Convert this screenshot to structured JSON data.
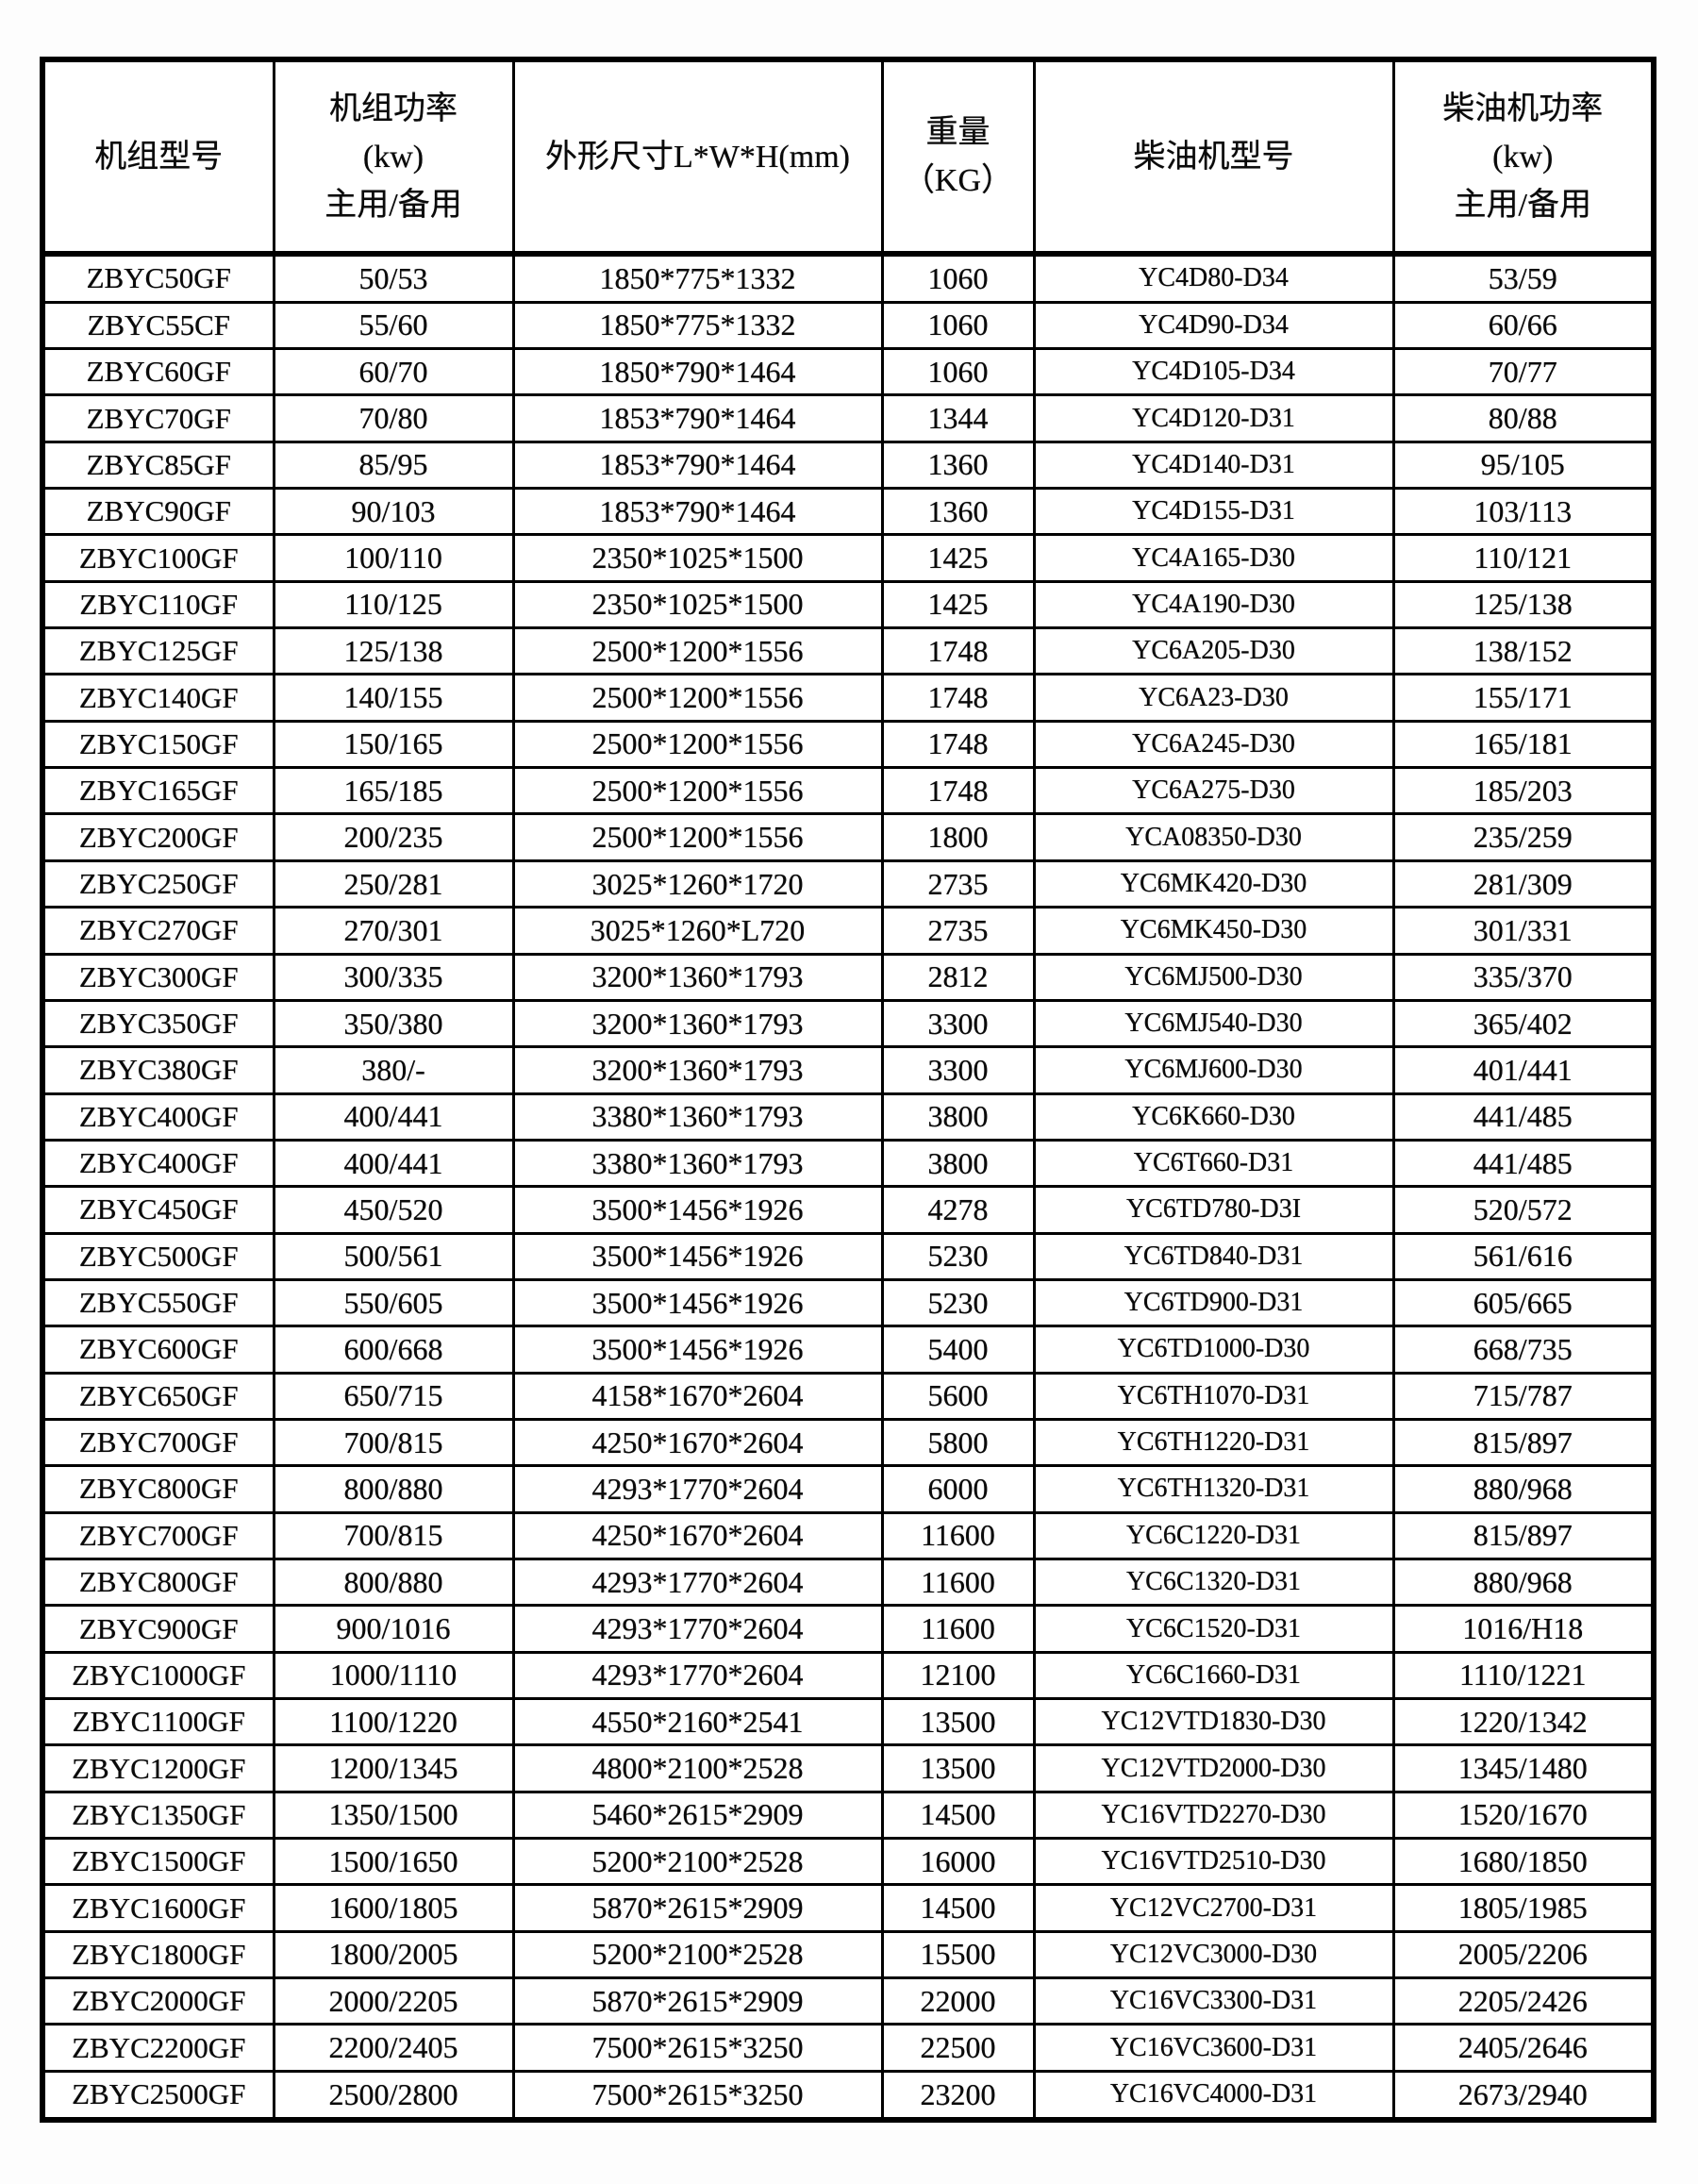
{
  "table": {
    "columns": [
      "机组型号",
      "机组功率\n(kw)\n主用/备用",
      "外形尺寸L*W*H(mm)",
      "重量\n（KG）",
      "柴油机型号",
      "柴油机功率\n(kw)\n主用/备用"
    ],
    "rows": [
      [
        "ZBYC50GF",
        "50/53",
        "1850*775*1332",
        "1060",
        "YC4D80-D34",
        "53/59"
      ],
      [
        "ZBYC55CF",
        "55/60",
        "1850*775*1332",
        "1060",
        "YC4D90-D34",
        "60/66"
      ],
      [
        "ZBYC60GF",
        "60/70",
        "1850*790*1464",
        "1060",
        "YC4D105-D34",
        "70/77"
      ],
      [
        "ZBYC70GF",
        "70/80",
        "1853*790*1464",
        "1344",
        "YC4D120-D31",
        "80/88"
      ],
      [
        "ZBYC85GF",
        "85/95",
        "1853*790*1464",
        "1360",
        "YC4D140-D31",
        "95/105"
      ],
      [
        "ZBYC90GF",
        "90/103",
        "1853*790*1464",
        "1360",
        "YC4D155-D31",
        "103/113"
      ],
      [
        "ZBYC100GF",
        "100/110",
        "2350*1025*1500",
        "1425",
        "YC4A165-D30",
        "110/121"
      ],
      [
        "ZBYC110GF",
        "110/125",
        "2350*1025*1500",
        "1425",
        "YC4A190-D30",
        "125/138"
      ],
      [
        "ZBYC125GF",
        "125/138",
        "2500*1200*1556",
        "1748",
        "YC6A205-D30",
        "138/152"
      ],
      [
        "ZBYC140GF",
        "140/155",
        "2500*1200*1556",
        "1748",
        "YC6A23-D30",
        "155/171"
      ],
      [
        "ZBYC150GF",
        "150/165",
        "2500*1200*1556",
        "1748",
        "YC6A245-D30",
        "165/181"
      ],
      [
        "ZBYC165GF",
        "165/185",
        "2500*1200*1556",
        "1748",
        "YC6A275-D30",
        "185/203"
      ],
      [
        "ZBYC200GF",
        "200/235",
        "2500*1200*1556",
        "1800",
        "YCA08350-D30",
        "235/259"
      ],
      [
        "ZBYC250GF",
        "250/281",
        "3025*1260*1720",
        "2735",
        "YC6MK420-D30",
        "281/309"
      ],
      [
        "ZBYC270GF",
        "270/301",
        "3025*1260*L720",
        "2735",
        "YC6MK450-D30",
        "301/331"
      ],
      [
        "ZBYC300GF",
        "300/335",
        "3200*1360*1793",
        "2812",
        "YC6MJ500-D30",
        "335/370"
      ],
      [
        "ZBYC350GF",
        "350/380",
        "3200*1360*1793",
        "3300",
        "YC6MJ540-D30",
        "365/402"
      ],
      [
        "ZBYC380GF",
        "380/-",
        "3200*1360*1793",
        "3300",
        "YC6MJ600-D30",
        "401/441"
      ],
      [
        "ZBYC400GF",
        "400/441",
        "3380*1360*1793",
        "3800",
        "YC6K660-D30",
        "441/485"
      ],
      [
        "ZBYC400GF",
        "400/441",
        "3380*1360*1793",
        "3800",
        "YC6T660-D31",
        "441/485"
      ],
      [
        "ZBYC450GF",
        "450/520",
        "3500*1456*1926",
        "4278",
        "YC6TD780-D3I",
        "520/572"
      ],
      [
        "ZBYC500GF",
        "500/561",
        "3500*1456*1926",
        "5230",
        "YC6TD840-D31",
        "561/616"
      ],
      [
        "ZBYC550GF",
        "550/605",
        "3500*1456*1926",
        "5230",
        "YC6TD900-D31",
        "605/665"
      ],
      [
        "ZBYC600GF",
        "600/668",
        "3500*1456*1926",
        "5400",
        "YC6TD1000-D30",
        "668/735"
      ],
      [
        "ZBYC650GF",
        "650/715",
        "4158*1670*2604",
        "5600",
        "YC6TH1070-D31",
        "715/787"
      ],
      [
        "ZBYC700GF",
        "700/815",
        "4250*1670*2604",
        "5800",
        "YC6TH1220-D31",
        "815/897"
      ],
      [
        "ZBYC800GF",
        "800/880",
        "4293*1770*2604",
        "6000",
        "YC6TH1320-D31",
        "880/968"
      ],
      [
        "ZBYC700GF",
        "700/815",
        "4250*1670*2604",
        "11600",
        "YC6C1220-D31",
        "815/897"
      ],
      [
        "ZBYC800GF",
        "800/880",
        "4293*1770*2604",
        "11600",
        "YC6C1320-D31",
        "880/968"
      ],
      [
        "ZBYC900GF",
        "900/1016",
        "4293*1770*2604",
        "11600",
        "YC6C1520-D31",
        "1016/H18"
      ],
      [
        "ZBYC1000GF",
        "1000/1110",
        "4293*1770*2604",
        "12100",
        "YC6C1660-D31",
        "1110/1221"
      ],
      [
        "ZBYC1100GF",
        "1100/1220",
        "4550*2160*2541",
        "13500",
        "YC12VTD1830-D30",
        "1220/1342"
      ],
      [
        "ZBYC1200GF",
        "1200/1345",
        "4800*2100*2528",
        "13500",
        "YC12VTD2000-D30",
        "1345/1480"
      ],
      [
        "ZBYC1350GF",
        "1350/1500",
        "5460*2615*2909",
        "14500",
        "YC16VTD2270-D30",
        "1520/1670"
      ],
      [
        "ZBYC1500GF",
        "1500/1650",
        "5200*2100*2528",
        "16000",
        "YC16VTD2510-D30",
        "1680/1850"
      ],
      [
        "ZBYC1600GF",
        "1600/1805",
        "5870*2615*2909",
        "14500",
        "YC12VC2700-D31",
        "1805/1985"
      ],
      [
        "ZBYC1800GF",
        "1800/2005",
        "5200*2100*2528",
        "15500",
        "YC12VC3000-D30",
        "2005/2206"
      ],
      [
        "ZBYC2000GF",
        "2000/2205",
        "5870*2615*2909",
        "22000",
        "YC16VC3300-D31",
        "2205/2426"
      ],
      [
        "ZBYC2200GF",
        "2200/2405",
        "7500*2615*3250",
        "22500",
        "YC16VC3600-D31",
        "2405/2646"
      ],
      [
        "ZBYC2500GF",
        "2500/2800",
        "7500*2615*3250",
        "23200",
        "YC16VC4000-D31",
        "2673/2940"
      ]
    ]
  }
}
